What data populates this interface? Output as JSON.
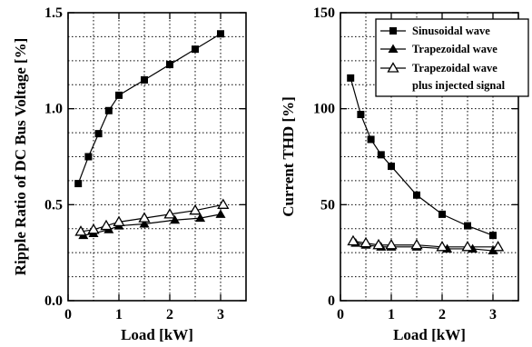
{
  "chart_data": [
    {
      "type": "line",
      "xlabel": "Load [kW]",
      "ylabel": "Ripple Ratio of DC Bus Voltage [%]",
      "xlim": [
        0,
        3.5
      ],
      "ylim": [
        0,
        1.5
      ],
      "x_ticks": [
        "0",
        "1",
        "2",
        "3"
      ],
      "y_ticks": [
        "0.0",
        "0.5",
        "1.0",
        "1.5"
      ],
      "grid": true,
      "legend": null,
      "series": [
        {
          "marker": "square-filled",
          "x": [
            0.2,
            0.4,
            0.6,
            0.8,
            1.0,
            1.5,
            2.0,
            2.5,
            3.0
          ],
          "y": [
            0.61,
            0.75,
            0.87,
            0.99,
            1.07,
            1.15,
            1.23,
            1.31,
            1.39
          ]
        },
        {
          "marker": "triangle-filled",
          "x": [
            0.3,
            0.5,
            0.8,
            1.0,
            1.5,
            2.1,
            2.6,
            3.0
          ],
          "y": [
            0.34,
            0.35,
            0.37,
            0.39,
            0.4,
            0.42,
            0.43,
            0.45
          ]
        },
        {
          "marker": "triangle-open",
          "x": [
            0.25,
            0.5,
            0.75,
            1.0,
            1.5,
            2.0,
            2.5,
            3.05
          ],
          "y": [
            0.36,
            0.37,
            0.39,
            0.41,
            0.43,
            0.45,
            0.47,
            0.5
          ]
        }
      ]
    },
    {
      "type": "line",
      "xlabel": "Load [kW]",
      "ylabel": "Current THD [%]",
      "xlim": [
        0,
        3.5
      ],
      "ylim": [
        0,
        150
      ],
      "x_ticks": [
        "0",
        "1",
        "2",
        "3"
      ],
      "y_ticks": [
        "0",
        "50",
        "100",
        "150"
      ],
      "grid": true,
      "legend": "top-right",
      "series": [
        {
          "name": "Sinusoidal wave",
          "marker": "square-filled",
          "x": [
            0.2,
            0.4,
            0.6,
            0.8,
            1.0,
            1.5,
            2.0,
            2.5,
            3.0
          ],
          "y": [
            116,
            97,
            84,
            76,
            70,
            55,
            45,
            39,
            34
          ]
        },
        {
          "name": "Trapezoidal wave",
          "marker": "triangle-filled",
          "x": [
            0.3,
            0.5,
            0.8,
            1.0,
            1.5,
            2.1,
            2.6,
            3.0
          ],
          "y": [
            30,
            29,
            28,
            28,
            28,
            27,
            27,
            26
          ]
        },
        {
          "name": "Trapezoidal wave plus injected signal",
          "name_lines": [
            "Trapezoidal wave",
            "plus injected signal"
          ],
          "marker": "triangle-open",
          "x": [
            0.25,
            0.5,
            0.75,
            1.0,
            1.5,
            2.0,
            2.5,
            3.1
          ],
          "y": [
            31,
            30,
            29,
            29,
            29,
            28,
            28,
            28
          ]
        }
      ]
    }
  ]
}
